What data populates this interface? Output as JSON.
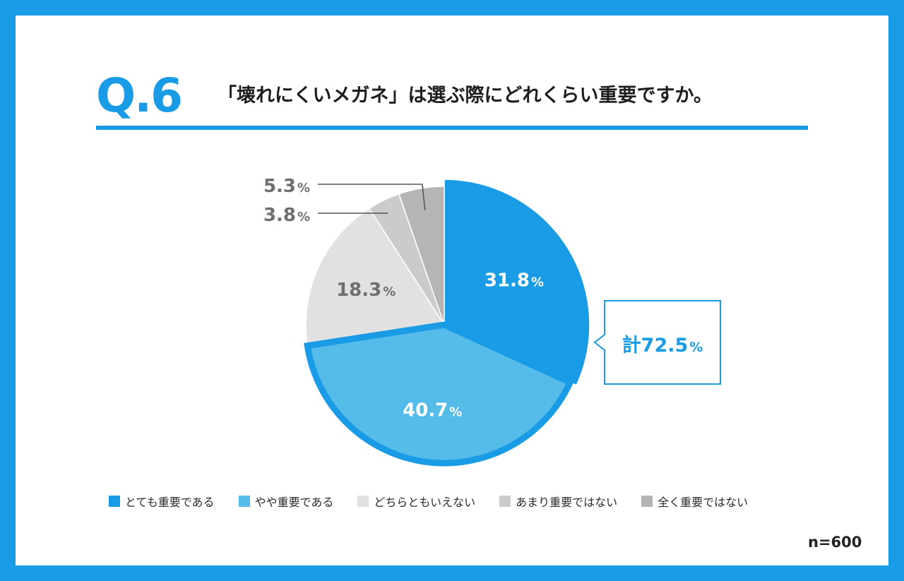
{
  "header": {
    "question_number": "Q.6",
    "question_text": "「壊れにくいメガネ」は選ぶ際にどれくらい重要ですか。"
  },
  "chart_data": {
    "type": "pie",
    "title": "「壊れにくいメガネ」は選ぶ際にどれくらい重要ですか。",
    "categories": [
      "とても重要である",
      "やや重要である",
      "どちらともいえない",
      "あまり重要ではない",
      "全く重要ではない"
    ],
    "values": [
      31.8,
      40.7,
      18.3,
      3.8,
      5.3
    ],
    "colors": [
      "#1a9be6",
      "#55bcea",
      "#e1e1e1",
      "#cbcbcb",
      "#b5b5b5"
    ],
    "value_labels": [
      "31.8",
      "40.7",
      "18.3",
      "3.8",
      "5.3"
    ],
    "unit": "%",
    "start": "12 o'clock, clockwise",
    "legend_position": "bottom",
    "highlight": {
      "label": "計72.5",
      "unit": "%",
      "slices": [
        "とても重要である",
        "やや重要である"
      ]
    }
  },
  "footer": {
    "sample_size": "n=600"
  }
}
